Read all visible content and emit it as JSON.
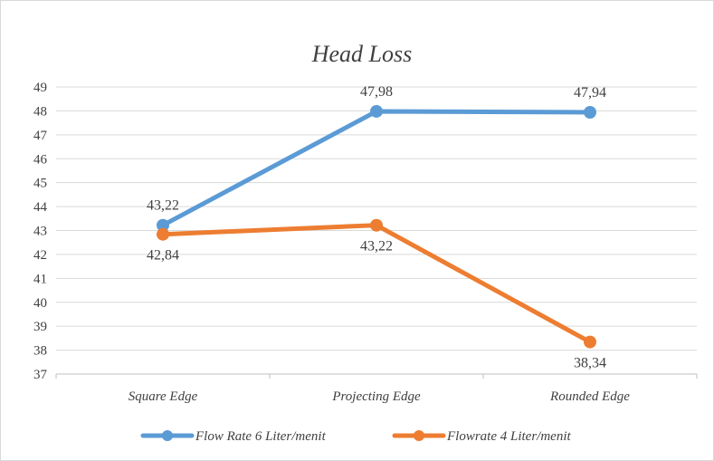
{
  "chart_data": {
    "type": "line",
    "title": "Head Loss",
    "categories": [
      "Square Edge",
      "Projecting Edge",
      "Rounded Edge"
    ],
    "ylim": [
      37,
      49
    ],
    "yticks": [
      37,
      38,
      39,
      40,
      41,
      42,
      43,
      44,
      45,
      46,
      47,
      48,
      49
    ],
    "grid": true,
    "legend_position": "bottom",
    "series": [
      {
        "name": "Flow Rate 6 Liter/menit",
        "color": "#5b9bd5",
        "values": [
          43.22,
          47.98,
          47.94
        ],
        "labels": [
          "43,22",
          "47,98",
          "47,94"
        ],
        "label_side": [
          "above",
          "above",
          "above"
        ]
      },
      {
        "name": "Flowrate 4 Liter/menit",
        "color": "#ed7d31",
        "values": [
          42.84,
          43.22,
          38.34
        ],
        "labels": [
          "42,84",
          "43,22",
          "38,34"
        ],
        "label_side": [
          "below",
          "below",
          "below"
        ]
      }
    ]
  }
}
